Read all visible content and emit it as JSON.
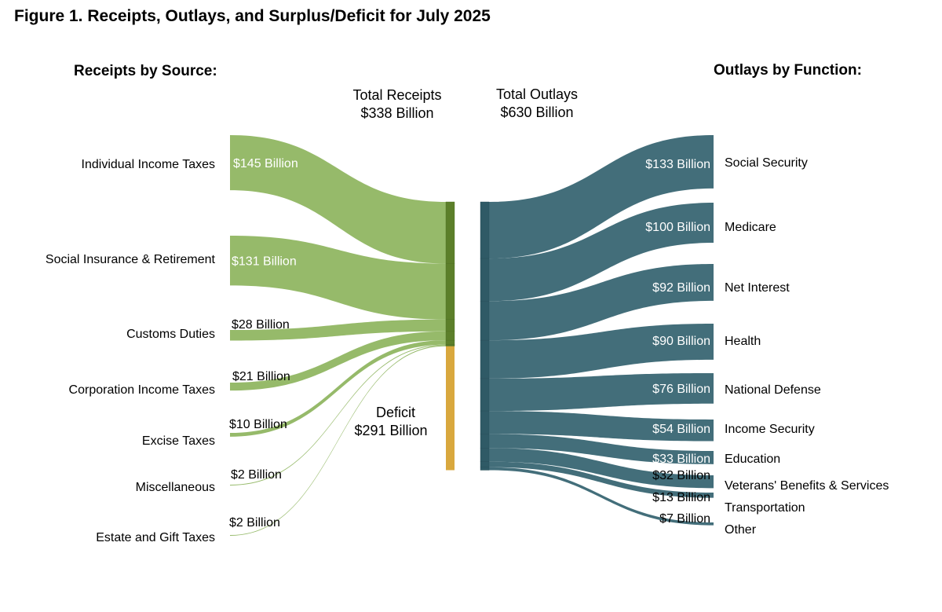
{
  "title": "Figure 1. Receipts, Outlays, and Surplus/Deficit for July 2025",
  "chart_data": {
    "type": "sankey",
    "title": "Figure 1. Receipts, Outlays, and Surplus/Deficit for July 2025",
    "units": "Billion dollars",
    "receipts_heading": "Receipts by Source:",
    "outlays_heading": "Outlays by Function:",
    "total_receipts": {
      "line1": "Total Receipts",
      "line2": "$338 Billion",
      "value": 338
    },
    "total_outlays": {
      "line1": "Total Outlays",
      "line2": "$630 Billion",
      "value": 630
    },
    "deficit": {
      "line1": "Deficit",
      "line2": "$291 Billion",
      "value": 291
    },
    "receipts": [
      {
        "name": "Individual Income Taxes",
        "value": 145,
        "label": "$145 Billion"
      },
      {
        "name": "Social Insurance & Retirement",
        "value": 131,
        "label": "$131 Billion"
      },
      {
        "name": "Customs Duties",
        "value": 28,
        "label": "$28 Billion"
      },
      {
        "name": "Corporation Income Taxes",
        "value": 21,
        "label": "$21 Billion"
      },
      {
        "name": "Excise Taxes",
        "value": 10,
        "label": "$10 Billion"
      },
      {
        "name": "Miscellaneous",
        "value": 2,
        "label": "$2 Billion"
      },
      {
        "name": "Estate and Gift Taxes",
        "value": 2,
        "label": "$2 Billion"
      }
    ],
    "outlays": [
      {
        "name": "Social Security",
        "value": 133,
        "label": "$133 Billion"
      },
      {
        "name": "Medicare",
        "value": 100,
        "label": "$100 Billion"
      },
      {
        "name": "Net Interest",
        "value": 92,
        "label": "$92 Billion"
      },
      {
        "name": "Health",
        "value": 90,
        "label": "$90 Billion"
      },
      {
        "name": "National Defense",
        "value": 76,
        "label": "$76 Billion"
      },
      {
        "name": "Income Security",
        "value": 54,
        "label": "$54 Billion"
      },
      {
        "name": "Education",
        "value": 33,
        "label": "$33 Billion"
      },
      {
        "name": "Veterans' Benefits & Services",
        "value": 32,
        "label": "$32 Billion"
      },
      {
        "name": "Transportation",
        "value": 13,
        "label": "$13 Billion"
      },
      {
        "name": "Other",
        "value": 7,
        "label": "$7 Billion"
      }
    ],
    "colors": {
      "receipts_flow": "#96ba6a",
      "receipts_node": "#5c7f2a",
      "deficit_node": "#d9a83e",
      "outlays_flow": "#436e7a",
      "outlays_node": "#2f5a66"
    }
  }
}
